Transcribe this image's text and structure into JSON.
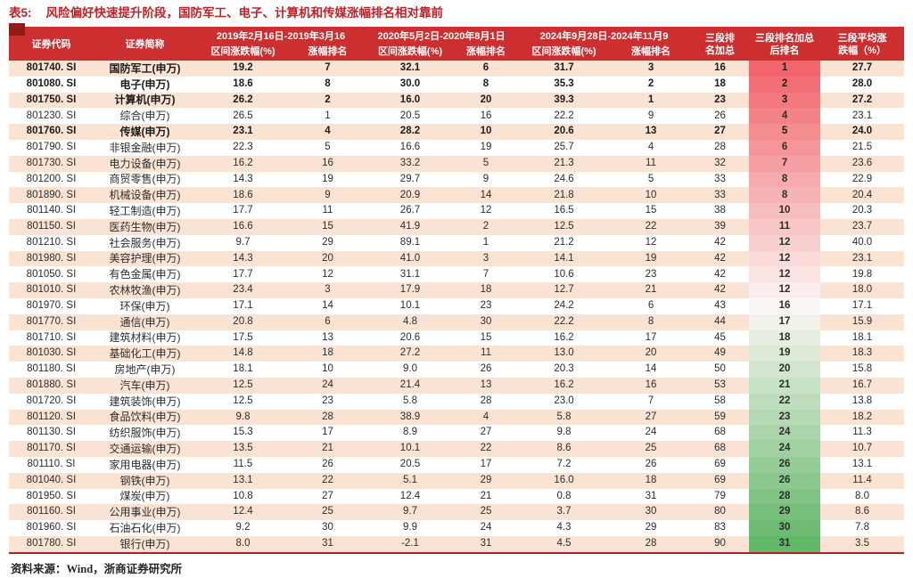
{
  "title": {
    "label": "表5:",
    "text": "风险偏好快速提升阶段，国防军工、电子、计算机和传媒涨幅排名相对靠前"
  },
  "header": {
    "code": "证券代码",
    "name": "证券简称",
    "groups": [
      {
        "period": "2019年2月16日-2019年3月16",
        "sub": [
          "区间涨跌幅(%)",
          "涨幅排名"
        ]
      },
      {
        "period": "2020年5月2日-2020年8月1日",
        "sub": [
          "区间涨跌幅(%)",
          "涨幅排名"
        ]
      },
      {
        "period": "2024年9月28日-2024年11月9",
        "sub": [
          "区间涨跌幅(%)",
          "涨幅排名"
        ]
      }
    ],
    "sum_rank": [
      "三段排",
      "名加总"
    ],
    "sum_rank_after": [
      "三段排名加总",
      "后排名"
    ],
    "avg": [
      "三段平均涨",
      "跌幅（%）"
    ]
  },
  "table": {
    "rows": [
      {
        "code": "801740. SI",
        "name": "国防军工(申万)",
        "bold": true,
        "v": [
          "19.2",
          7,
          "32.1",
          6,
          "31.7",
          3,
          16,
          1,
          "27.7"
        ]
      },
      {
        "code": "801080. SI",
        "name": "电子(申万)",
        "bold": true,
        "v": [
          "18.6",
          8,
          "30.0",
          8,
          "35.3",
          2,
          18,
          2,
          "28.0"
        ]
      },
      {
        "code": "801750. SI",
        "name": "计算机(申万)",
        "bold": true,
        "v": [
          "26.2",
          2,
          "16.0",
          20,
          "39.3",
          1,
          23,
          3,
          "27.2"
        ]
      },
      {
        "code": "801230. SI",
        "name": "综合(申万)",
        "bold": false,
        "v": [
          "26.5",
          1,
          "20.5",
          16,
          "22.2",
          9,
          26,
          4,
          "23.1"
        ]
      },
      {
        "code": "801760. SI",
        "name": "传媒(申万)",
        "bold": true,
        "v": [
          "23.1",
          4,
          "28.2",
          10,
          "20.6",
          13,
          27,
          5,
          "24.0"
        ]
      },
      {
        "code": "801790. SI",
        "name": "非银金融(申万)",
        "bold": false,
        "v": [
          "22.3",
          5,
          "16.6",
          19,
          "25.7",
          4,
          28,
          6,
          "21.5"
        ]
      },
      {
        "code": "801730. SI",
        "name": "电力设备(申万)",
        "bold": false,
        "v": [
          "16.2",
          16,
          "33.2",
          5,
          "21.3",
          11,
          32,
          7,
          "23.6"
        ]
      },
      {
        "code": "801200. SI",
        "name": "商贸零售(申万)",
        "bold": false,
        "v": [
          "14.3",
          19,
          "29.7",
          9,
          "24.6",
          5,
          33,
          8,
          "22.9"
        ]
      },
      {
        "code": "801890. SI",
        "name": "机械设备(申万)",
        "bold": false,
        "v": [
          "18.6",
          9,
          "20.9",
          14,
          "21.8",
          10,
          33,
          8,
          "20.4"
        ]
      },
      {
        "code": "801140. SI",
        "name": "轻工制造(申万)",
        "bold": false,
        "v": [
          "17.7",
          11,
          "26.7",
          12,
          "16.5",
          15,
          38,
          10,
          "20.3"
        ]
      },
      {
        "code": "801150. SI",
        "name": "医药生物(申万)",
        "bold": false,
        "v": [
          "16.6",
          15,
          "41.9",
          2,
          "12.5",
          22,
          39,
          11,
          "23.7"
        ]
      },
      {
        "code": "801210. SI",
        "name": "社会服务(申万)",
        "bold": false,
        "v": [
          "9.7",
          29,
          "89.1",
          1,
          "21.2",
          12,
          42,
          12,
          "40.0"
        ]
      },
      {
        "code": "801980. SI",
        "name": "美容护理(申万)",
        "bold": false,
        "v": [
          "14.3",
          20,
          "41.0",
          3,
          "14.1",
          19,
          42,
          12,
          "23.1"
        ]
      },
      {
        "code": "801050. SI",
        "name": "有色金属(申万)",
        "bold": false,
        "v": [
          "17.7",
          12,
          "31.1",
          7,
          "10.6",
          23,
          42,
          12,
          "19.8"
        ]
      },
      {
        "code": "801010. SI",
        "name": "农林牧渔(申万)",
        "bold": false,
        "v": [
          "23.4",
          3,
          "17.9",
          18,
          "12.7",
          21,
          42,
          12,
          "18.0"
        ]
      },
      {
        "code": "801970. SI",
        "name": "环保(申万)",
        "bold": false,
        "v": [
          "17.1",
          14,
          "10.1",
          23,
          "24.2",
          6,
          43,
          16,
          "17.1"
        ]
      },
      {
        "code": "801770. SI",
        "name": "通信(申万)",
        "bold": false,
        "v": [
          "20.8",
          6,
          "4.8",
          30,
          "22.2",
          8,
          44,
          17,
          "15.9"
        ]
      },
      {
        "code": "801710. SI",
        "name": "建筑材料(申万)",
        "bold": false,
        "v": [
          "17.5",
          13,
          "20.6",
          15,
          "16.2",
          17,
          45,
          18,
          "18.1"
        ]
      },
      {
        "code": "801030. SI",
        "name": "基础化工(申万)",
        "bold": false,
        "v": [
          "14.8",
          18,
          "27.2",
          11,
          "13.0",
          20,
          49,
          19,
          "18.3"
        ]
      },
      {
        "code": "801180. SI",
        "name": "房地产(申万)",
        "bold": false,
        "v": [
          "18.1",
          10,
          "9.0",
          26,
          "20.3",
          14,
          50,
          20,
          "15.8"
        ]
      },
      {
        "code": "801880. SI",
        "name": "汽车(申万)",
        "bold": false,
        "v": [
          "12.5",
          24,
          "21.4",
          13,
          "16.2",
          16,
          53,
          21,
          "16.7"
        ]
      },
      {
        "code": "801720. SI",
        "name": "建筑装饰(申万)",
        "bold": false,
        "v": [
          "12.5",
          23,
          "5.8",
          28,
          "23.0",
          7,
          58,
          22,
          "13.8"
        ]
      },
      {
        "code": "801120. SI",
        "name": "食品饮料(申万)",
        "bold": false,
        "v": [
          "9.8",
          28,
          "38.9",
          4,
          "5.8",
          27,
          59,
          23,
          "18.2"
        ]
      },
      {
        "code": "801130. SI",
        "name": "纺织服饰(申万)",
        "bold": false,
        "v": [
          "15.3",
          17,
          "8.9",
          27,
          "9.8",
          24,
          68,
          24,
          "11.3"
        ]
      },
      {
        "code": "801170. SI",
        "name": "交通运输(申万)",
        "bold": false,
        "v": [
          "13.5",
          21,
          "10.1",
          22,
          "8.6",
          25,
          68,
          24,
          "10.7"
        ]
      },
      {
        "code": "801110. SI",
        "name": "家用电器(申万)",
        "bold": false,
        "v": [
          "11.5",
          26,
          "20.5",
          17,
          "7.2",
          26,
          69,
          26,
          "13.1"
        ]
      },
      {
        "code": "801040. SI",
        "name": "钢铁(申万)",
        "bold": false,
        "v": [
          "13.1",
          22,
          "5.1",
          29,
          "16.0",
          18,
          69,
          26,
          "11.4"
        ]
      },
      {
        "code": "801950. SI",
        "name": "煤炭(申万)",
        "bold": false,
        "v": [
          "10.8",
          27,
          "12.4",
          21,
          "0.8",
          31,
          79,
          28,
          "8.0"
        ]
      },
      {
        "code": "801160. SI",
        "name": "公用事业(申万)",
        "bold": false,
        "v": [
          "12.4",
          25,
          "9.7",
          25,
          "3.7",
          30,
          80,
          29,
          "8.6"
        ]
      },
      {
        "code": "801960. SI",
        "name": "石油石化(申万)",
        "bold": false,
        "v": [
          "9.2",
          30,
          "9.9",
          24,
          "4.3",
          29,
          83,
          30,
          "7.8"
        ]
      },
      {
        "code": "801780. SI",
        "name": "银行(申万)",
        "bold": false,
        "v": [
          "8.0",
          31,
          "-2.1",
          31,
          "4.5",
          28,
          90,
          31,
          "3.5"
        ]
      }
    ]
  },
  "footer": {
    "source": "资料来源：Wind，浙商证券研究所"
  },
  "colors": {
    "header_bg": "#cb2f2f",
    "title_red": "#c31f24",
    "corner": "#8f1b1b",
    "rule": "#a32424",
    "stripe": "#fbe3d4",
    "rank_red_start": "#f1666c",
    "rank_mid": "#fbf7f4",
    "rank_green_end": "#63b769"
  }
}
